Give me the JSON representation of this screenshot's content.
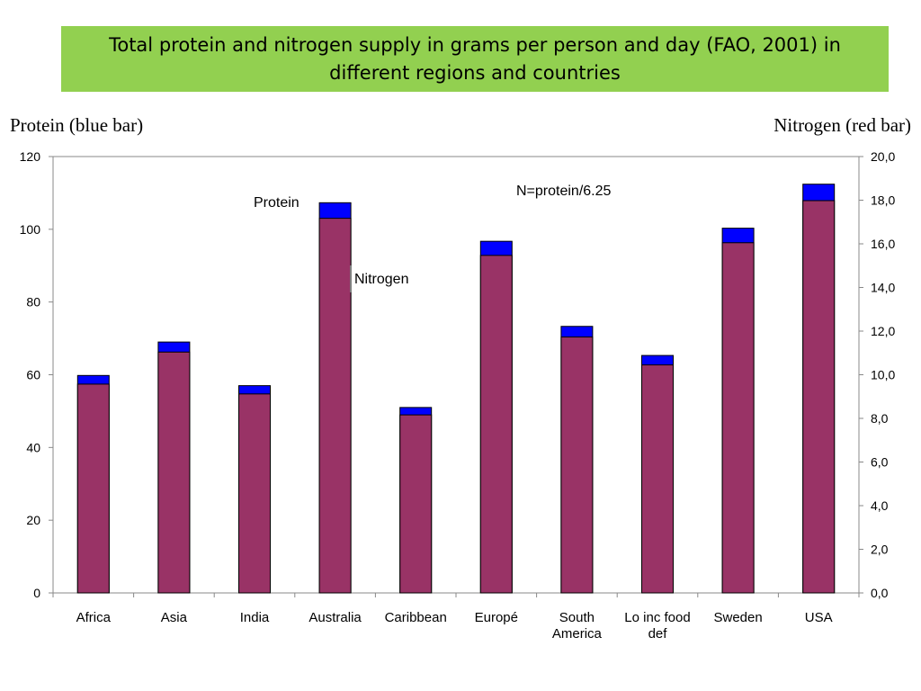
{
  "title": "Total protein and nitrogen supply in grams per person and day (FAO, 2001) in different regions and countries",
  "left_caption": "Protein (blue bar)",
  "right_caption": "Nitrogen (red bar)",
  "chart_data": {
    "type": "bar",
    "categories": [
      "Africa",
      "Asia",
      "India",
      "Australia",
      "Caribbean",
      "Europé",
      "South America",
      "Lo inc food def",
      "Sweden",
      "USA"
    ],
    "series": [
      {
        "name": "Protein",
        "axis": "left",
        "color": "#0000ff",
        "values": [
          59.8,
          69.0,
          57.0,
          107.3,
          51.0,
          96.7,
          73.3,
          65.3,
          100.3,
          112.4
        ]
      },
      {
        "name": "Nitrogen",
        "axis": "right",
        "color": "#993366",
        "values": [
          9.57,
          11.04,
          9.12,
          17.17,
          8.16,
          15.47,
          11.73,
          10.45,
          16.05,
          17.98
        ]
      }
    ],
    "ylim_left": [
      0,
      120
    ],
    "yticks_left": [
      "0",
      "20",
      "40",
      "60",
      "80",
      "100",
      "120"
    ],
    "ylim_right": [
      0,
      20
    ],
    "yticks_right": [
      "0,0",
      "2,0",
      "4,0",
      "6,0",
      "8,0",
      "10,0",
      "12,0",
      "14,0",
      "16,0",
      "18,0",
      "20,0"
    ],
    "annotations": {
      "formula": "N=protein/6.25",
      "protein_label": "Protein",
      "nitrogen_label": "Nitrogen"
    },
    "grid": false,
    "legend": "none"
  }
}
